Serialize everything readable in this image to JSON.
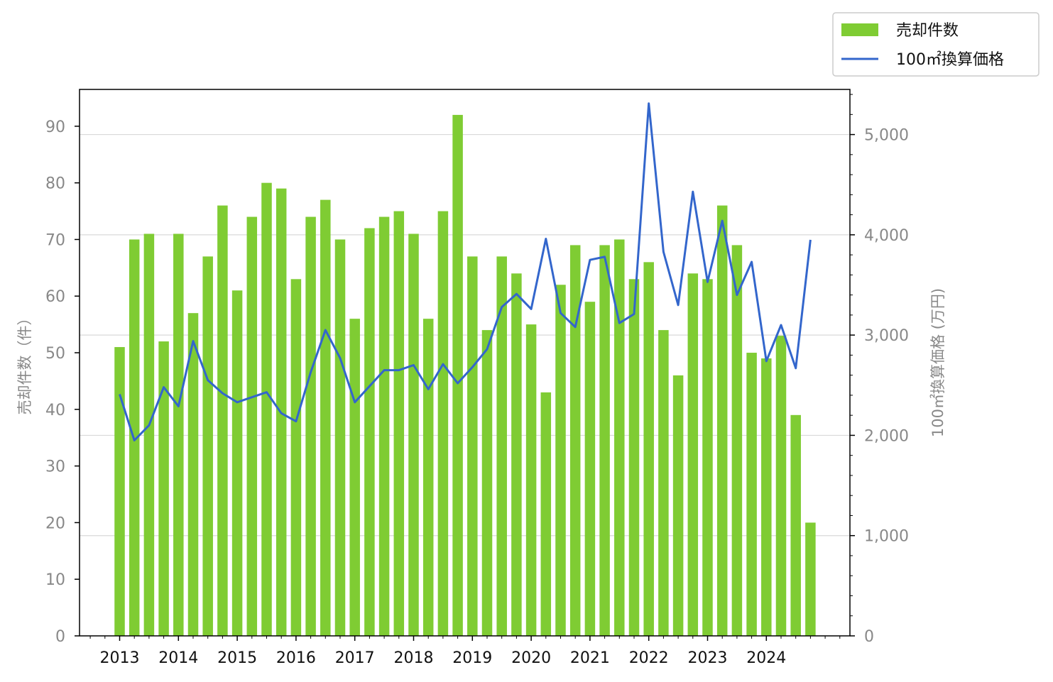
{
  "chart_data": {
    "type": "bar+line",
    "title": "",
    "legend": {
      "placement": "top-right",
      "entries": [
        {
          "label": "売却件数",
          "color": "#7fcc33",
          "kind": "bar"
        },
        {
          "label": "100㎡換算価格",
          "color": "#3366cc",
          "kind": "line"
        }
      ]
    },
    "y_left": {
      "label": "売却件数（件）",
      "min": 0,
      "max": 96.5,
      "ticks": [
        "0",
        "10",
        "20",
        "30",
        "40",
        "50",
        "60",
        "70",
        "80",
        "90"
      ]
    },
    "y_right": {
      "label": "100㎡換算価格 (万円)",
      "min": 0,
      "max": 5450,
      "ticks": [
        "0",
        "1,000",
        "2,000",
        "3,000",
        "4,000",
        "5,000"
      ]
    },
    "x": {
      "tick_labels": [
        "2013",
        "2014",
        "2015",
        "2016",
        "2017",
        "2018",
        "2019",
        "2020",
        "2021",
        "2022",
        "2023",
        "2024"
      ],
      "quarters_per_year": 4
    },
    "grid": true,
    "series": [
      {
        "name": "売却件数",
        "kind": "bar",
        "color": "#7fcc33",
        "values": [
          51,
          70,
          71,
          52,
          71,
          57,
          67,
          76,
          61,
          74,
          80,
          79,
          63,
          74,
          77,
          70,
          56,
          72,
          74,
          75,
          71,
          56,
          75,
          92,
          67,
          54,
          67,
          64,
          55,
          43,
          62,
          69,
          59,
          69,
          70,
          63,
          66,
          54,
          46,
          64,
          63,
          76,
          69,
          50,
          49,
          53,
          39,
          20
        ]
      },
      {
        "name": "100㎡換算価格",
        "kind": "line",
        "color": "#3366cc",
        "values": [
          2410,
          1950,
          2100,
          2480,
          2290,
          2940,
          2550,
          2420,
          2330,
          2380,
          2430,
          2220,
          2140,
          2630,
          3050,
          2770,
          2330,
          2490,
          2650,
          2650,
          2700,
          2460,
          2710,
          2520,
          2680,
          2860,
          3280,
          3410,
          3260,
          3960,
          3220,
          3080,
          3750,
          3780,
          3120,
          3210,
          5310,
          3830,
          3300,
          4430,
          3530,
          4140,
          3400,
          3730,
          2740,
          3100,
          2670,
          3950
        ]
      }
    ]
  }
}
